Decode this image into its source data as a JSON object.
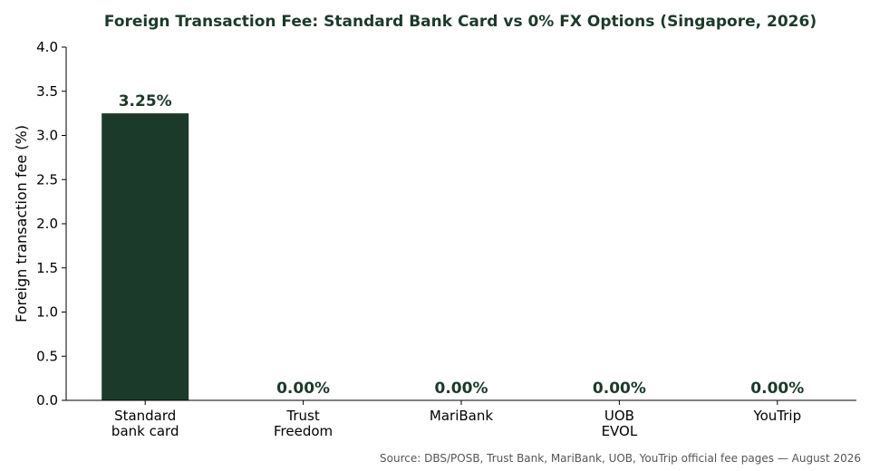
{
  "chart_data": {
    "type": "bar",
    "title": "Foreign Transaction Fee: Standard Bank Card vs 0% FX Options (Singapore, 2026)",
    "xlabel": "",
    "ylabel": "Foreign transaction fee (%)",
    "ylim": [
      0,
      4.0
    ],
    "yticks": [
      "0.0",
      "0.5",
      "1.0",
      "1.5",
      "2.0",
      "2.5",
      "3.0",
      "3.5",
      "4.0"
    ],
    "ytick_values": [
      0,
      0.5,
      1.0,
      1.5,
      2.0,
      2.5,
      3.0,
      3.5,
      4.0
    ],
    "categories": [
      [
        "Standard",
        "bank card"
      ],
      [
        "Trust",
        "Freedom"
      ],
      [
        "MariBank"
      ],
      [
        "UOB",
        "EVOL"
      ],
      [
        "YouTrip"
      ]
    ],
    "values": [
      3.25,
      0.0,
      0.0,
      0.0,
      0.0
    ],
    "value_labels": [
      "3.25%",
      "0.00%",
      "0.00%",
      "0.00%",
      "0.00%"
    ],
    "grid": false,
    "source": "Source: DBS/POSB, Trust Bank, MariBank, UOB, YouTrip official fee pages — August 2026",
    "colors": {
      "bar": "#1c3a2a",
      "title": "#1c3a2a",
      "value_label": "#1c3a2a",
      "axis": "#000000",
      "source": "#555555"
    }
  }
}
